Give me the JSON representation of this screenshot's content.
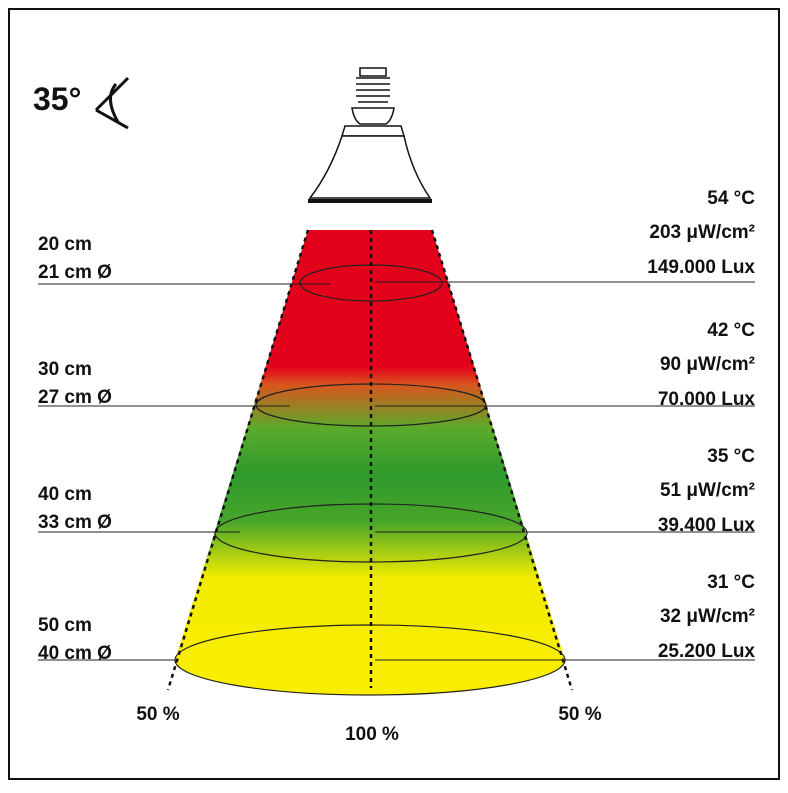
{
  "angle": "35°",
  "levels": [
    {
      "distance": "20 cm",
      "diameter": "21 cm Ø",
      "temperature": "54 °C",
      "uv": "203 μW/cm²",
      "lux": "149.000 Lux"
    },
    {
      "distance": "30 cm",
      "diameter": "27 cm Ø",
      "temperature": "42 °C",
      "uv": "90 μW/cm²",
      "lux": "70.000 Lux"
    },
    {
      "distance": "40 cm",
      "diameter": "33 cm Ø",
      "temperature": "35 °C",
      "uv": "51 μW/cm²",
      "lux": "39.400 Lux"
    },
    {
      "distance": "50 cm",
      "diameter": "40 cm Ø",
      "temperature": "31 °C",
      "uv": "32 μW/cm²",
      "lux": "25.200 Lux"
    }
  ],
  "bottom_labels": {
    "left": "50 %",
    "center": "100 %",
    "right": "50 %"
  }
}
